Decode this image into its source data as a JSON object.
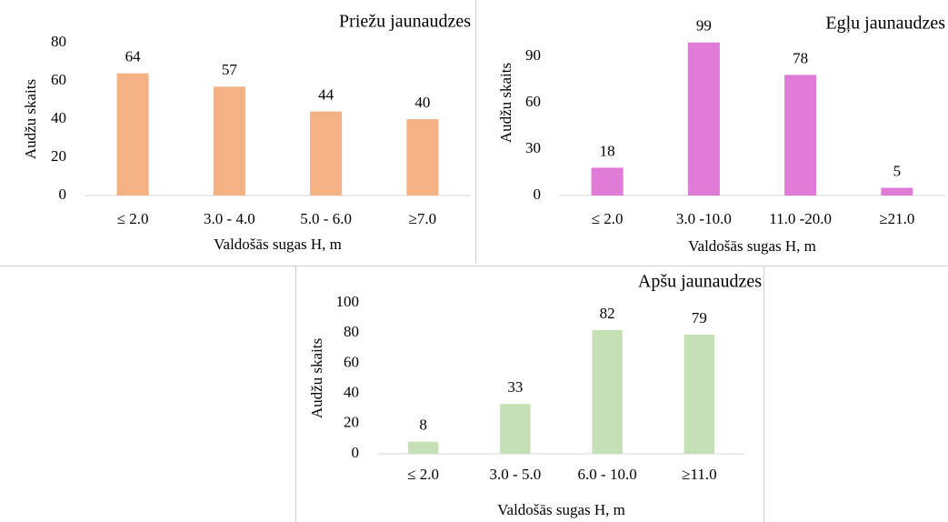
{
  "chart_data": [
    {
      "type": "bar",
      "title": "Priežu jaunaudzes",
      "x_label": "Valdošās sugas H, m",
      "y_label": "Audžu skaits",
      "categories": [
        "≤ 2.0",
        "3.0 - 4.0",
        "5.0 - 6.0",
        "≥7.0"
      ],
      "values": [
        64,
        57,
        44,
        40
      ],
      "color": "#f4b183",
      "ylim": [
        0,
        80
      ],
      "yticks": [
        0,
        20,
        40,
        60,
        80
      ],
      "grid": false
    },
    {
      "type": "bar",
      "title": "Egļu jaunaudzes",
      "x_label": "Valdošās sugas H, m",
      "y_label": "Audžu skaits",
      "categories": [
        "≤ 2.0",
        "3.0 -10.0",
        "11.0 -20.0",
        "≥21.0"
      ],
      "values": [
        18,
        99,
        78,
        5
      ],
      "color": "#e07bd8",
      "ylim": [
        0,
        120
      ],
      "yticks": [
        0,
        30,
        60,
        90
      ],
      "grid": false
    },
    {
      "type": "bar",
      "title": "Apšu jaunaudzes",
      "x_label": "Valdošās sugas H, m",
      "y_label": "Audžu skaits",
      "categories": [
        "≤ 2.0",
        "3.0 - 5.0",
        "6.0 - 10.0",
        "≥11.0"
      ],
      "values": [
        8,
        33,
        82,
        79
      ],
      "color": "#c5e0b4",
      "ylim": [
        0,
        100
      ],
      "yticks": [
        0,
        20,
        40,
        60,
        80,
        100
      ],
      "grid": false
    }
  ]
}
